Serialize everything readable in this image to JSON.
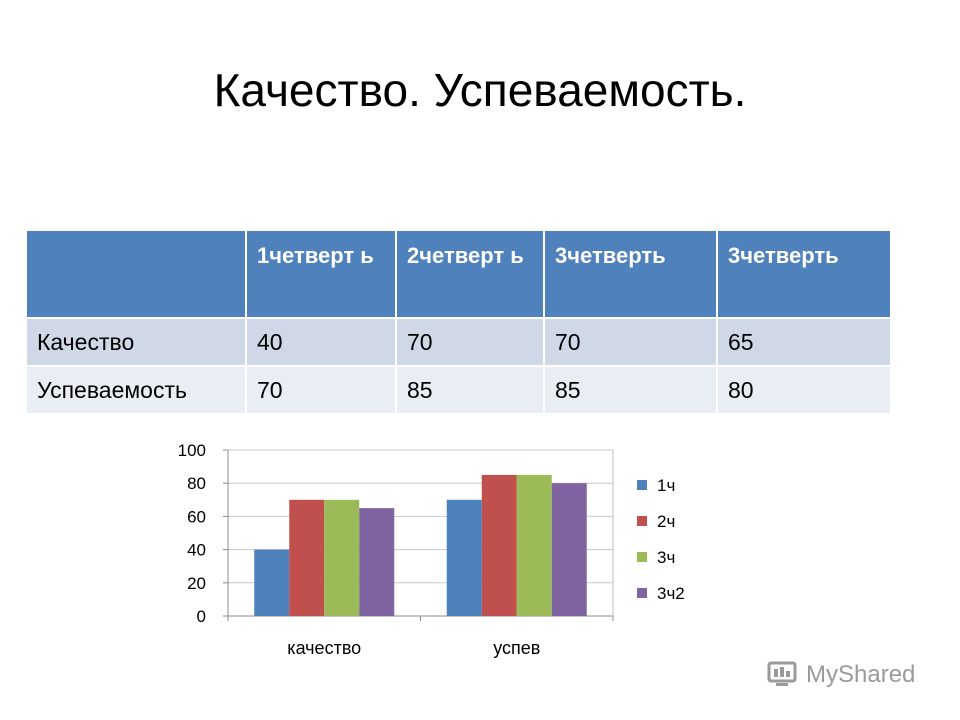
{
  "slide": {
    "title": "Качество. Успеваемость."
  },
  "table": {
    "headers": [
      "",
      "1четверт ь",
      "2четверт ь",
      "3четверть",
      "3четверть"
    ],
    "rows": [
      [
        "Качество",
        "40",
        "70",
        "70",
        "65"
      ],
      [
        "Успеваемость",
        "70",
        "85",
        "85",
        "80"
      ]
    ]
  },
  "chart_data": {
    "type": "bar",
    "categories": [
      "качество",
      "успев"
    ],
    "series": [
      {
        "name": "1ч",
        "values": [
          40,
          70
        ],
        "color": "#4f81bd"
      },
      {
        "name": "2ч",
        "values": [
          70,
          85
        ],
        "color": "#c0504d"
      },
      {
        "name": "3ч",
        "values": [
          70,
          85
        ],
        "color": "#9bbb59"
      },
      {
        "name": "3ч2",
        "values": [
          65,
          80
        ],
        "color": "#8064a2"
      }
    ],
    "yticks": [
      "0",
      "20",
      "40",
      "60",
      "80",
      "100"
    ],
    "ylim": [
      0,
      100
    ],
    "grid": true,
    "legend": "right"
  },
  "watermark": {
    "text": "MyShared"
  }
}
